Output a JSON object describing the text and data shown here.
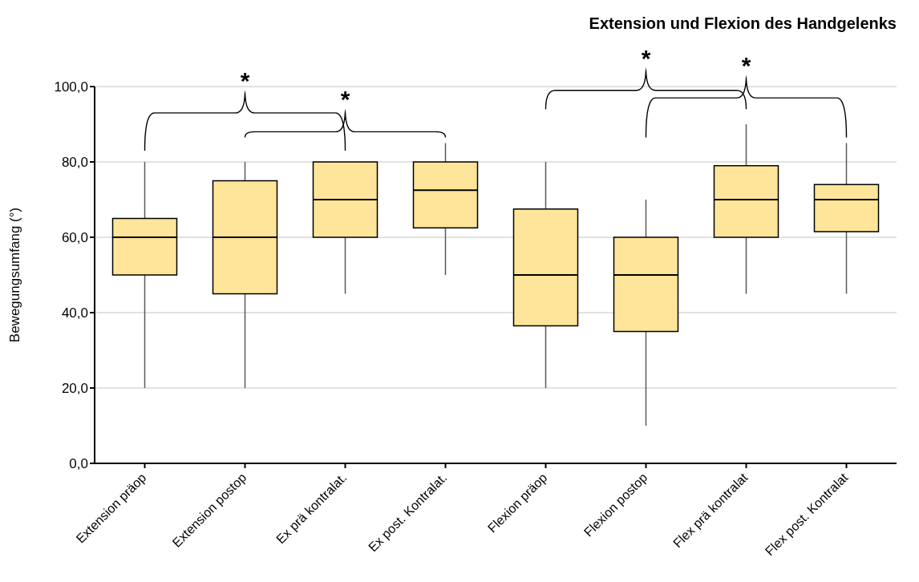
{
  "chart_data": {
    "type": "box",
    "title": "Extension und Flexion des Handgelenks",
    "ylabel": "Bewegungsumfang (°)",
    "categories": [
      "Extension präop",
      "Extension postop",
      "Ex prä kontralat.",
      "Ex post. Kontralat.",
      "Flexion präop",
      "Flexion postop",
      "Flex prä kontralat",
      "Flex post. Kontralat"
    ],
    "boxes": [
      {
        "low": 20,
        "q1": 50,
        "median": 60,
        "q3": 65,
        "high": 80
      },
      {
        "low": 20,
        "q1": 45,
        "median": 60,
        "q3": 75,
        "high": 80
      },
      {
        "low": 45,
        "q1": 60,
        "median": 70,
        "q3": 80,
        "high": 80
      },
      {
        "low": 50,
        "q1": 62.5,
        "median": 72.5,
        "q3": 80,
        "high": 85
      },
      {
        "low": 20,
        "q1": 36.5,
        "median": 50,
        "q3": 67.5,
        "high": 80
      },
      {
        "low": 10,
        "q1": 35,
        "median": 50,
        "q3": 60,
        "high": 70
      },
      {
        "low": 45,
        "q1": 60,
        "median": 70,
        "q3": 79,
        "high": 90
      },
      {
        "low": 45,
        "q1": 61.5,
        "median": 70,
        "q3": 74,
        "high": 85
      }
    ],
    "color": "#fee599",
    "ylim": [
      0,
      100
    ],
    "yticks": [
      {
        "value": 0,
        "label": "0,0"
      },
      {
        "value": 20,
        "label": "20,0"
      },
      {
        "value": 40,
        "label": "40,0"
      },
      {
        "value": 60,
        "label": "60,0"
      },
      {
        "value": 80,
        "label": "80,0"
      },
      {
        "value": 100,
        "label": "100,0"
      }
    ],
    "grid": "y",
    "annotations": [
      "*",
      "*",
      "*",
      "*"
    ]
  }
}
